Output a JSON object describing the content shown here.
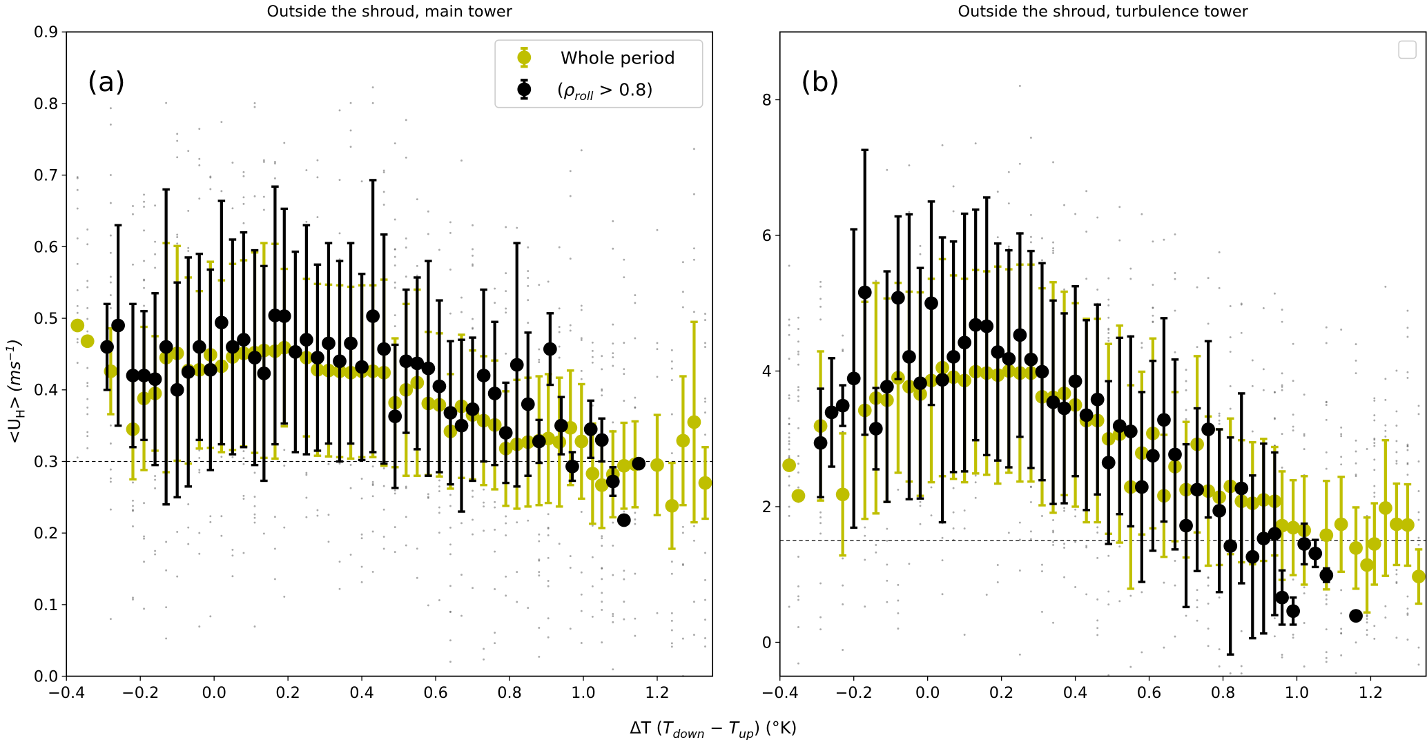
{
  "colors": {
    "whole_period": "#bfbf00",
    "rho_roll": "#000000",
    "background_points": "#555555",
    "reference_line": "#000000"
  },
  "figure": {
    "xlabel_parts": [
      "ΔT (",
      "T",
      "down",
      " − ",
      "T",
      "up",
      ") (°K)"
    ],
    "ylabel_parts": [
      "<U",
      "H",
      ">",
      "(ms",
      "−1",
      ")"
    ]
  },
  "legend": {
    "whole_label": "Whole period",
    "rho_parts": [
      "(",
      "ρ",
      "roll",
      " > 0.8)"
    ]
  },
  "chart_data": [
    {
      "type": "scatter",
      "panel_label": "(a)",
      "title": "Outside the shroud, main tower",
      "xlim": [
        -0.4,
        1.35
      ],
      "ylim": [
        0.0,
        0.9
      ],
      "xticks": [
        -0.4,
        -0.2,
        0.0,
        0.2,
        0.4,
        0.6,
        0.8,
        1.0,
        1.2
      ],
      "yticks": [
        0.0,
        0.1,
        0.2,
        0.3,
        0.4,
        0.5,
        0.6,
        0.7,
        0.8,
        0.9
      ],
      "ytick_decimals": 1,
      "reference_line_y": 0.3,
      "legend": "top-right",
      "grid": false,
      "series": [
        {
          "name": "Whole period",
          "x": [
            -0.37,
            -0.343,
            -0.28,
            -0.22,
            -0.19,
            -0.16,
            -0.13,
            -0.1,
            -0.07,
            -0.04,
            -0.01,
            0.02,
            0.05,
            0.08,
            0.11,
            0.135,
            0.165,
            0.19,
            0.25,
            0.28,
            0.31,
            0.34,
            0.37,
            0.4,
            0.43,
            0.46,
            0.49,
            0.52,
            0.55,
            0.58,
            0.61,
            0.64,
            0.67,
            0.7,
            0.73,
            0.76,
            0.79,
            0.82,
            0.85,
            0.88,
            0.905,
            0.935,
            0.965,
            0.995,
            1.025,
            1.05,
            1.08,
            1.11,
            1.14,
            1.2,
            1.24,
            1.27,
            1.3,
            1.33
          ],
          "y": [
            0.49,
            0.468,
            0.426,
            0.345,
            0.388,
            0.395,
            0.445,
            0.451,
            0.427,
            0.428,
            0.449,
            0.433,
            0.446,
            0.451,
            0.452,
            0.455,
            0.454,
            0.459,
            0.445,
            0.428,
            0.427,
            0.426,
            0.424,
            0.426,
            0.426,
            0.424,
            0.382,
            0.4,
            0.41,
            0.381,
            0.379,
            0.342,
            0.377,
            0.365,
            0.357,
            0.351,
            0.318,
            0.324,
            0.327,
            0.329,
            0.332,
            0.327,
            0.347,
            0.328,
            0.283,
            0.267,
            0.282,
            0.294,
            0.296,
            0.295,
            0.238,
            0.329,
            0.355,
            0.27
          ],
          "yerr": [
            0,
            0,
            0.06,
            0.07,
            0.1,
            0.08,
            0.16,
            0.15,
            0.13,
            0.11,
            0.13,
            0.12,
            0.13,
            0.13,
            0.14,
            0.15,
            0.15,
            0.11,
            0.11,
            0.12,
            0.12,
            0.12,
            0.12,
            0.12,
            0.12,
            0.13,
            0.09,
            0.12,
            0.13,
            0.1,
            0.1,
            0.08,
            0.1,
            0.09,
            0.09,
            0.09,
            0.08,
            0.09,
            0.09,
            0.09,
            0.09,
            0.09,
            0.08,
            0.08,
            0.07,
            0.06,
            0.06,
            0.06,
            0.06,
            0.07,
            0.06,
            0.09,
            0.14,
            0.05
          ]
        },
        {
          "name": "(ρroll > 0.8)",
          "x": [
            -0.29,
            -0.26,
            -0.22,
            -0.19,
            -0.16,
            -0.13,
            -0.1,
            -0.07,
            -0.04,
            -0.01,
            0.02,
            0.05,
            0.08,
            0.11,
            0.135,
            0.165,
            0.19,
            0.22,
            0.25,
            0.28,
            0.31,
            0.34,
            0.37,
            0.4,
            0.43,
            0.46,
            0.49,
            0.52,
            0.55,
            0.58,
            0.61,
            0.64,
            0.67,
            0.7,
            0.73,
            0.76,
            0.79,
            0.82,
            0.85,
            0.88,
            0.91,
            0.94,
            0.97,
            1.02,
            1.05,
            1.08,
            1.11,
            1.15
          ],
          "y": [
            0.46,
            0.49,
            0.42,
            0.42,
            0.415,
            0.46,
            0.4,
            0.425,
            0.46,
            0.428,
            0.494,
            0.46,
            0.47,
            0.445,
            0.423,
            0.504,
            0.503,
            0.453,
            0.47,
            0.445,
            0.465,
            0.44,
            0.465,
            0.432,
            0.503,
            0.457,
            0.363,
            0.44,
            0.437,
            0.43,
            0.405,
            0.368,
            0.35,
            0.373,
            0.42,
            0.395,
            0.34,
            0.435,
            0.38,
            0.328,
            0.457,
            0.35,
            0.293,
            0.345,
            0.33,
            0.272,
            0.218,
            0.297
          ],
          "yerr": [
            0.06,
            0.14,
            0.1,
            0.09,
            0.12,
            0.22,
            0.15,
            0.16,
            0.13,
            0.14,
            0.17,
            0.15,
            0.15,
            0.15,
            0.15,
            0.18,
            0.15,
            0.14,
            0.16,
            0.13,
            0.14,
            0.14,
            0.14,
            0.13,
            0.19,
            0.16,
            0.1,
            0.1,
            0.12,
            0.15,
            0.12,
            0.1,
            0.12,
            0.1,
            0.12,
            0.1,
            0.07,
            0.17,
            0.1,
            0.03,
            0.05,
            0.04,
            0.02,
            0.04,
            0.03,
            0.02,
            0,
            0
          ]
        }
      ]
    },
    {
      "type": "scatter",
      "panel_label": "(b)",
      "title": "Outside the shroud, turbulence tower",
      "xlim": [
        -0.4,
        1.35
      ],
      "ylim": [
        -0.5,
        9.0
      ],
      "xticks": [
        -0.4,
        -0.2,
        0.0,
        0.2,
        0.4,
        0.6,
        0.8,
        1.0,
        1.2
      ],
      "yticks": [
        0,
        2,
        4,
        6,
        8
      ],
      "ytick_decimals": 0,
      "reference_line_y": 1.5,
      "legend": "top-right (empty)",
      "grid": false,
      "series": [
        {
          "name": "Whole period",
          "x": [
            -0.375,
            -0.35,
            -0.29,
            -0.23,
            -0.17,
            -0.14,
            -0.11,
            -0.08,
            -0.05,
            -0.02,
            0.01,
            0.04,
            0.07,
            0.1,
            0.13,
            0.16,
            0.19,
            0.22,
            0.25,
            0.28,
            0.31,
            0.34,
            0.37,
            0.4,
            0.43,
            0.46,
            0.49,
            0.52,
            0.55,
            0.58,
            0.61,
            0.64,
            0.67,
            0.7,
            0.73,
            0.76,
            0.79,
            0.82,
            0.85,
            0.88,
            0.91,
            0.94,
            0.96,
            0.99,
            1.02,
            1.08,
            1.12,
            1.16,
            1.19,
            1.21,
            1.24,
            1.27,
            1.3,
            1.33
          ],
          "y": [
            2.61,
            2.16,
            3.19,
            2.18,
            3.42,
            3.6,
            3.57,
            3.9,
            3.77,
            3.66,
            3.86,
            4.05,
            3.91,
            3.86,
            3.99,
            3.97,
            3.94,
            4.0,
            3.97,
            3.97,
            3.62,
            3.61,
            3.67,
            3.5,
            3.27,
            3.27,
            3.0,
            3.07,
            2.29,
            2.79,
            3.08,
            2.16,
            2.59,
            2.25,
            2.92,
            2.23,
            2.14,
            2.3,
            2.08,
            2.05,
            2.1,
            2.08,
            1.72,
            1.69,
            1.65,
            1.58,
            1.74,
            1.39,
            1.14,
            1.45,
            1.98,
            1.74,
            1.73,
            0.97
          ],
          "yerr": [
            0,
            0,
            1.1,
            0.9,
            1.6,
            1.7,
            1.5,
            1.4,
            1.4,
            1.5,
            1.5,
            1.6,
            1.5,
            1.5,
            1.5,
            1.5,
            1.6,
            1.5,
            1.6,
            1.6,
            1.6,
            1.7,
            1.5,
            1.5,
            1.5,
            1.5,
            1.4,
            1.6,
            1.5,
            1.2,
            1.4,
            0.9,
            1.1,
            1.0,
            1.3,
            1.1,
            1.0,
            1.0,
            0.9,
            0.9,
            0.9,
            0.8,
            0.8,
            0.7,
            0.8,
            0.8,
            0.7,
            0.6,
            0.7,
            0.6,
            1.0,
            0.6,
            0.6,
            0.4
          ]
        },
        {
          "name": "(ρroll > 0.8)",
          "x": [
            -0.29,
            -0.26,
            -0.23,
            -0.2,
            -0.17,
            -0.14,
            -0.11,
            -0.08,
            -0.05,
            -0.02,
            0.01,
            0.04,
            0.07,
            0.1,
            0.13,
            0.16,
            0.19,
            0.22,
            0.25,
            0.28,
            0.31,
            0.34,
            0.37,
            0.4,
            0.43,
            0.46,
            0.49,
            0.52,
            0.55,
            0.58,
            0.61,
            0.64,
            0.67,
            0.7,
            0.73,
            0.76,
            0.79,
            0.82,
            0.85,
            0.88,
            0.91,
            0.94,
            0.96,
            0.99,
            1.02,
            1.05,
            1.08,
            1.16
          ],
          "y": [
            2.94,
            3.39,
            3.49,
            3.89,
            5.16,
            3.15,
            3.77,
            5.08,
            4.21,
            3.82,
            5.0,
            3.87,
            4.21,
            4.42,
            4.68,
            4.66,
            4.28,
            4.18,
            4.53,
            4.17,
            3.99,
            3.54,
            3.45,
            3.85,
            3.35,
            3.58,
            2.65,
            3.19,
            3.11,
            2.29,
            2.75,
            3.28,
            2.77,
            1.72,
            2.25,
            3.14,
            1.94,
            1.42,
            2.27,
            1.26,
            1.53,
            1.6,
            0.66,
            0.46,
            1.45,
            1.31,
            0.99,
            0.39
          ],
          "yerr": [
            0.8,
            0.8,
            0.3,
            2.2,
            2.1,
            0.6,
            1.7,
            1.2,
            2.1,
            1.7,
            1.5,
            2.1,
            1.7,
            1.9,
            1.7,
            1.9,
            1.6,
            1.6,
            1.5,
            1.6,
            1.6,
            1.5,
            1.4,
            1.4,
            1.4,
            1.4,
            1.2,
            1.3,
            1.4,
            1.4,
            1.4,
            1.5,
            1.4,
            1.2,
            1.2,
            1.3,
            1.2,
            1.6,
            1.4,
            1.2,
            1.4,
            1.2,
            0.4,
            0.2,
            0.3,
            0.2,
            0.1,
            0
          ]
        }
      ]
    }
  ]
}
